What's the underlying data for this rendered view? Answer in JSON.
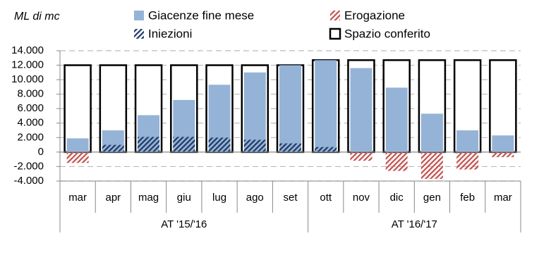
{
  "chart_data": {
    "type": "bar",
    "y_unit_label": "ML di mc",
    "groups": [
      {
        "label": "AT '15/'16",
        "categories": [
          "mar",
          "apr",
          "mag",
          "giu",
          "lug",
          "ago",
          "set"
        ]
      },
      {
        "label": "AT '16/'17",
        "categories": [
          "ott",
          "nov",
          "dic",
          "gen",
          "feb",
          "mar"
        ]
      }
    ],
    "series": [
      {
        "name": "Giacenze fine mese",
        "color": "#95b3d7",
        "fill": "solid",
        "values": [
          1900,
          3000,
          5100,
          7200,
          9300,
          11000,
          12000,
          12700,
          11600,
          8900,
          5300,
          3000,
          2300
        ]
      },
      {
        "name": "Erogazione",
        "color": "#c0504d",
        "fill": "hatch",
        "values": [
          -1500,
          null,
          null,
          null,
          null,
          null,
          null,
          null,
          -1200,
          -2600,
          -3700,
          -2400,
          -700
        ]
      },
      {
        "name": "Iniezioni",
        "color": "#1f3864",
        "fill": "hatch",
        "values": [
          null,
          1000,
          2100,
          2100,
          2000,
          1700,
          1200,
          700,
          null,
          null,
          null,
          null,
          null
        ]
      },
      {
        "name": "Spazio conferito",
        "color": "#000000",
        "fill": "outline",
        "values": [
          12000,
          12000,
          12000,
          12000,
          12000,
          12000,
          12000,
          12700,
          12700,
          12700,
          12700,
          12700,
          12700
        ]
      }
    ],
    "ylim": [
      -4000,
      14000
    ],
    "yticks": [
      {
        "value": -4000,
        "label": "-4.000"
      },
      {
        "value": -2000,
        "label": "-2.000"
      },
      0,
      {
        "value": 2000,
        "label": "2.000"
      },
      {
        "value": 4000,
        "label": "4.000"
      },
      {
        "value": 6000,
        "label": "6.000"
      },
      {
        "value": 8000,
        "label": "8.000"
      },
      {
        "value": 10000,
        "label": "10.000"
      },
      {
        "value": 12000,
        "label": "12.000"
      },
      {
        "value": 14000,
        "label": "14.000"
      }
    ],
    "grid": true
  }
}
